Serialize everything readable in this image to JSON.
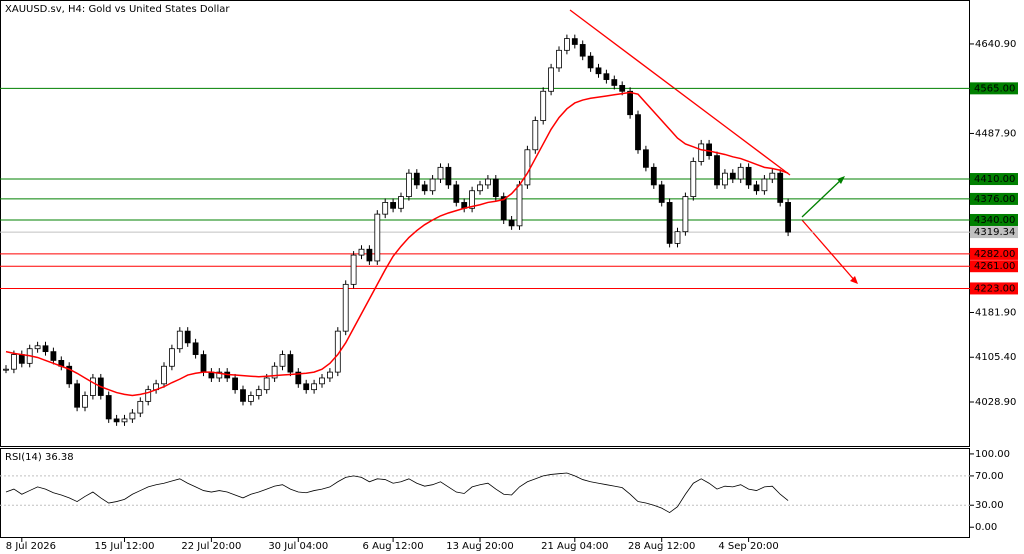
{
  "chart_data": [
    {
      "type": "candlestick",
      "title": "XAUUSD.sv, H4:  Gold vs United States Dollar",
      "categories": [
        null,
        null,
        "8 Jul 2026",
        null,
        null,
        null,
        null,
        null,
        null,
        null,
        null,
        null,
        null,
        null,
        null,
        "15 Jul 12:00",
        null,
        null,
        null,
        null,
        null,
        null,
        null,
        null,
        null,
        null,
        "22 Jul 20:00",
        null,
        null,
        null,
        null,
        null,
        null,
        null,
        null,
        null,
        null,
        "30 Jul 04:00",
        null,
        null,
        null,
        null,
        null,
        null,
        null,
        null,
        null,
        null,
        null,
        "6 Aug 12:00",
        null,
        null,
        null,
        null,
        null,
        null,
        null,
        null,
        null,
        null,
        "13 Aug 20:00",
        null,
        null,
        null,
        null,
        null,
        null,
        null,
        null,
        null,
        null,
        null,
        "21 Aug 04:00",
        null,
        null,
        null,
        null,
        null,
        null,
        null,
        null,
        null,
        null,
        "28 Aug 12:00",
        null,
        null,
        null,
        null,
        null,
        null,
        null,
        null,
        null,
        null,
        "4 Sep 20:00",
        null,
        null,
        null,
        null,
        null
      ],
      "values": [
        4085,
        4110,
        4095,
        4120,
        4125,
        4115,
        4100,
        4090,
        4060,
        4020,
        4040,
        4070,
        4040,
        4000,
        3995,
        4000,
        4010,
        4030,
        4050,
        4060,
        4090,
        4120,
        4150,
        4130,
        4110,
        4080,
        4070,
        4080,
        4070,
        4050,
        4030,
        4040,
        4050,
        4070,
        4090,
        4110,
        4080,
        4060,
        4050,
        4060,
        4070,
        4080,
        4150,
        4230,
        4280,
        4290,
        4270,
        4350,
        4370,
        4360,
        4380,
        4420,
        4400,
        4390,
        4410,
        4430,
        4400,
        4370,
        4360,
        4390,
        4400,
        4410,
        4380,
        4340,
        4330,
        4400,
        4460,
        4510,
        4560,
        4600,
        4630,
        4650,
        4640,
        4620,
        4600,
        4590,
        4580,
        4570,
        4560,
        4520,
        4460,
        4430,
        4400,
        4370,
        4300,
        4320,
        4380,
        4440,
        4470,
        4450,
        4400,
        4420,
        4410,
        4430,
        4400,
        4390,
        4410,
        4420,
        4370,
        4319.34
      ],
      "ma": {
        "color": "#ff0000",
        "values": [
          4115,
          4112,
          4110,
          4108,
          4105,
          4100,
          4095,
          4090,
          4085,
          4078,
          4070,
          4062,
          4055,
          4050,
          4045,
          4042,
          4040,
          4042,
          4045,
          4050,
          4055,
          4062,
          4068,
          4075,
          4078,
          4080,
          4080,
          4078,
          4076,
          4075,
          4074,
          4073,
          4072,
          4073,
          4074,
          4075,
          4076,
          4077,
          4078,
          4080,
          4085,
          4095,
          4110,
          4130,
          4155,
          4180,
          4205,
          4230,
          4255,
          4278,
          4295,
          4310,
          4322,
          4332,
          4340,
          4347,
          4352,
          4356,
          4360,
          4363,
          4366,
          4370,
          4372,
          4375,
          4385,
          4400,
          4420,
          4445,
          4470,
          4495,
          4515,
          4530,
          4540,
          4545,
          4548,
          4550,
          4552,
          4554,
          4556,
          4558,
          4555,
          4540,
          4525,
          4510,
          4495,
          4480,
          4470,
          4465,
          4460,
          4458,
          4455,
          4452,
          4448,
          4445,
          4440,
          4435,
          4430,
          4428,
          4425,
          4420
        ]
      },
      "ylim": [
        3952,
        4716
      ],
      "yticks": [
        {
          "value": 4640.9,
          "label": "4640.90"
        },
        {
          "value": 4487.9,
          "label": "4487.90"
        },
        {
          "value": 4181.9,
          "label": "4181.90"
        },
        {
          "value": 4105.4,
          "label": "4105.40"
        },
        {
          "value": 4028.9,
          "label": "4028.90"
        }
      ],
      "levels": [
        {
          "value": 4565,
          "label": "4565.00",
          "color": "#008000"
        },
        {
          "value": 4410,
          "label": "4410.00",
          "color": "#008000"
        },
        {
          "value": 4376,
          "label": "4376.00",
          "color": "#008000"
        },
        {
          "value": 4340,
          "label": "4340.00",
          "color": "#008000"
        },
        {
          "value": 4282,
          "label": "4282.00",
          "color": "#ff0000"
        },
        {
          "value": 4261,
          "label": "4261.00",
          "color": "#ff0000"
        },
        {
          "value": 4223,
          "label": "4223.00",
          "color": "#ff0000"
        }
      ],
      "current_price": 4319.34
    },
    {
      "type": "line",
      "title": "RSI(14) 36.38",
      "color": "#000000",
      "values": [
        48,
        52,
        45,
        50,
        55,
        52,
        47,
        44,
        40,
        35,
        42,
        48,
        40,
        33,
        35,
        38,
        45,
        50,
        55,
        58,
        60,
        63,
        66,
        60,
        55,
        50,
        48,
        50,
        48,
        44,
        40,
        45,
        48,
        52,
        56,
        58,
        52,
        48,
        47,
        50,
        52,
        55,
        62,
        68,
        70,
        68,
        62,
        66,
        65,
        60,
        62,
        66,
        60,
        56,
        58,
        62,
        55,
        48,
        46,
        55,
        58,
        60,
        52,
        45,
        44,
        55,
        62,
        66,
        70,
        72,
        73,
        74,
        70,
        65,
        62,
        60,
        58,
        56,
        54,
        45,
        35,
        33,
        30,
        26,
        20,
        28,
        45,
        60,
        66,
        60,
        52,
        56,
        55,
        58,
        52,
        50,
        55,
        56,
        45,
        36.38
      ],
      "ylim": [
        -14.7,
        106.7
      ],
      "yticks": [
        {
          "value": 100,
          "label": "100.00"
        },
        {
          "value": 70,
          "label": "70.00"
        },
        {
          "value": 30,
          "label": "30.00"
        },
        {
          "value": 0,
          "label": "0.00"
        }
      ]
    }
  ]
}
